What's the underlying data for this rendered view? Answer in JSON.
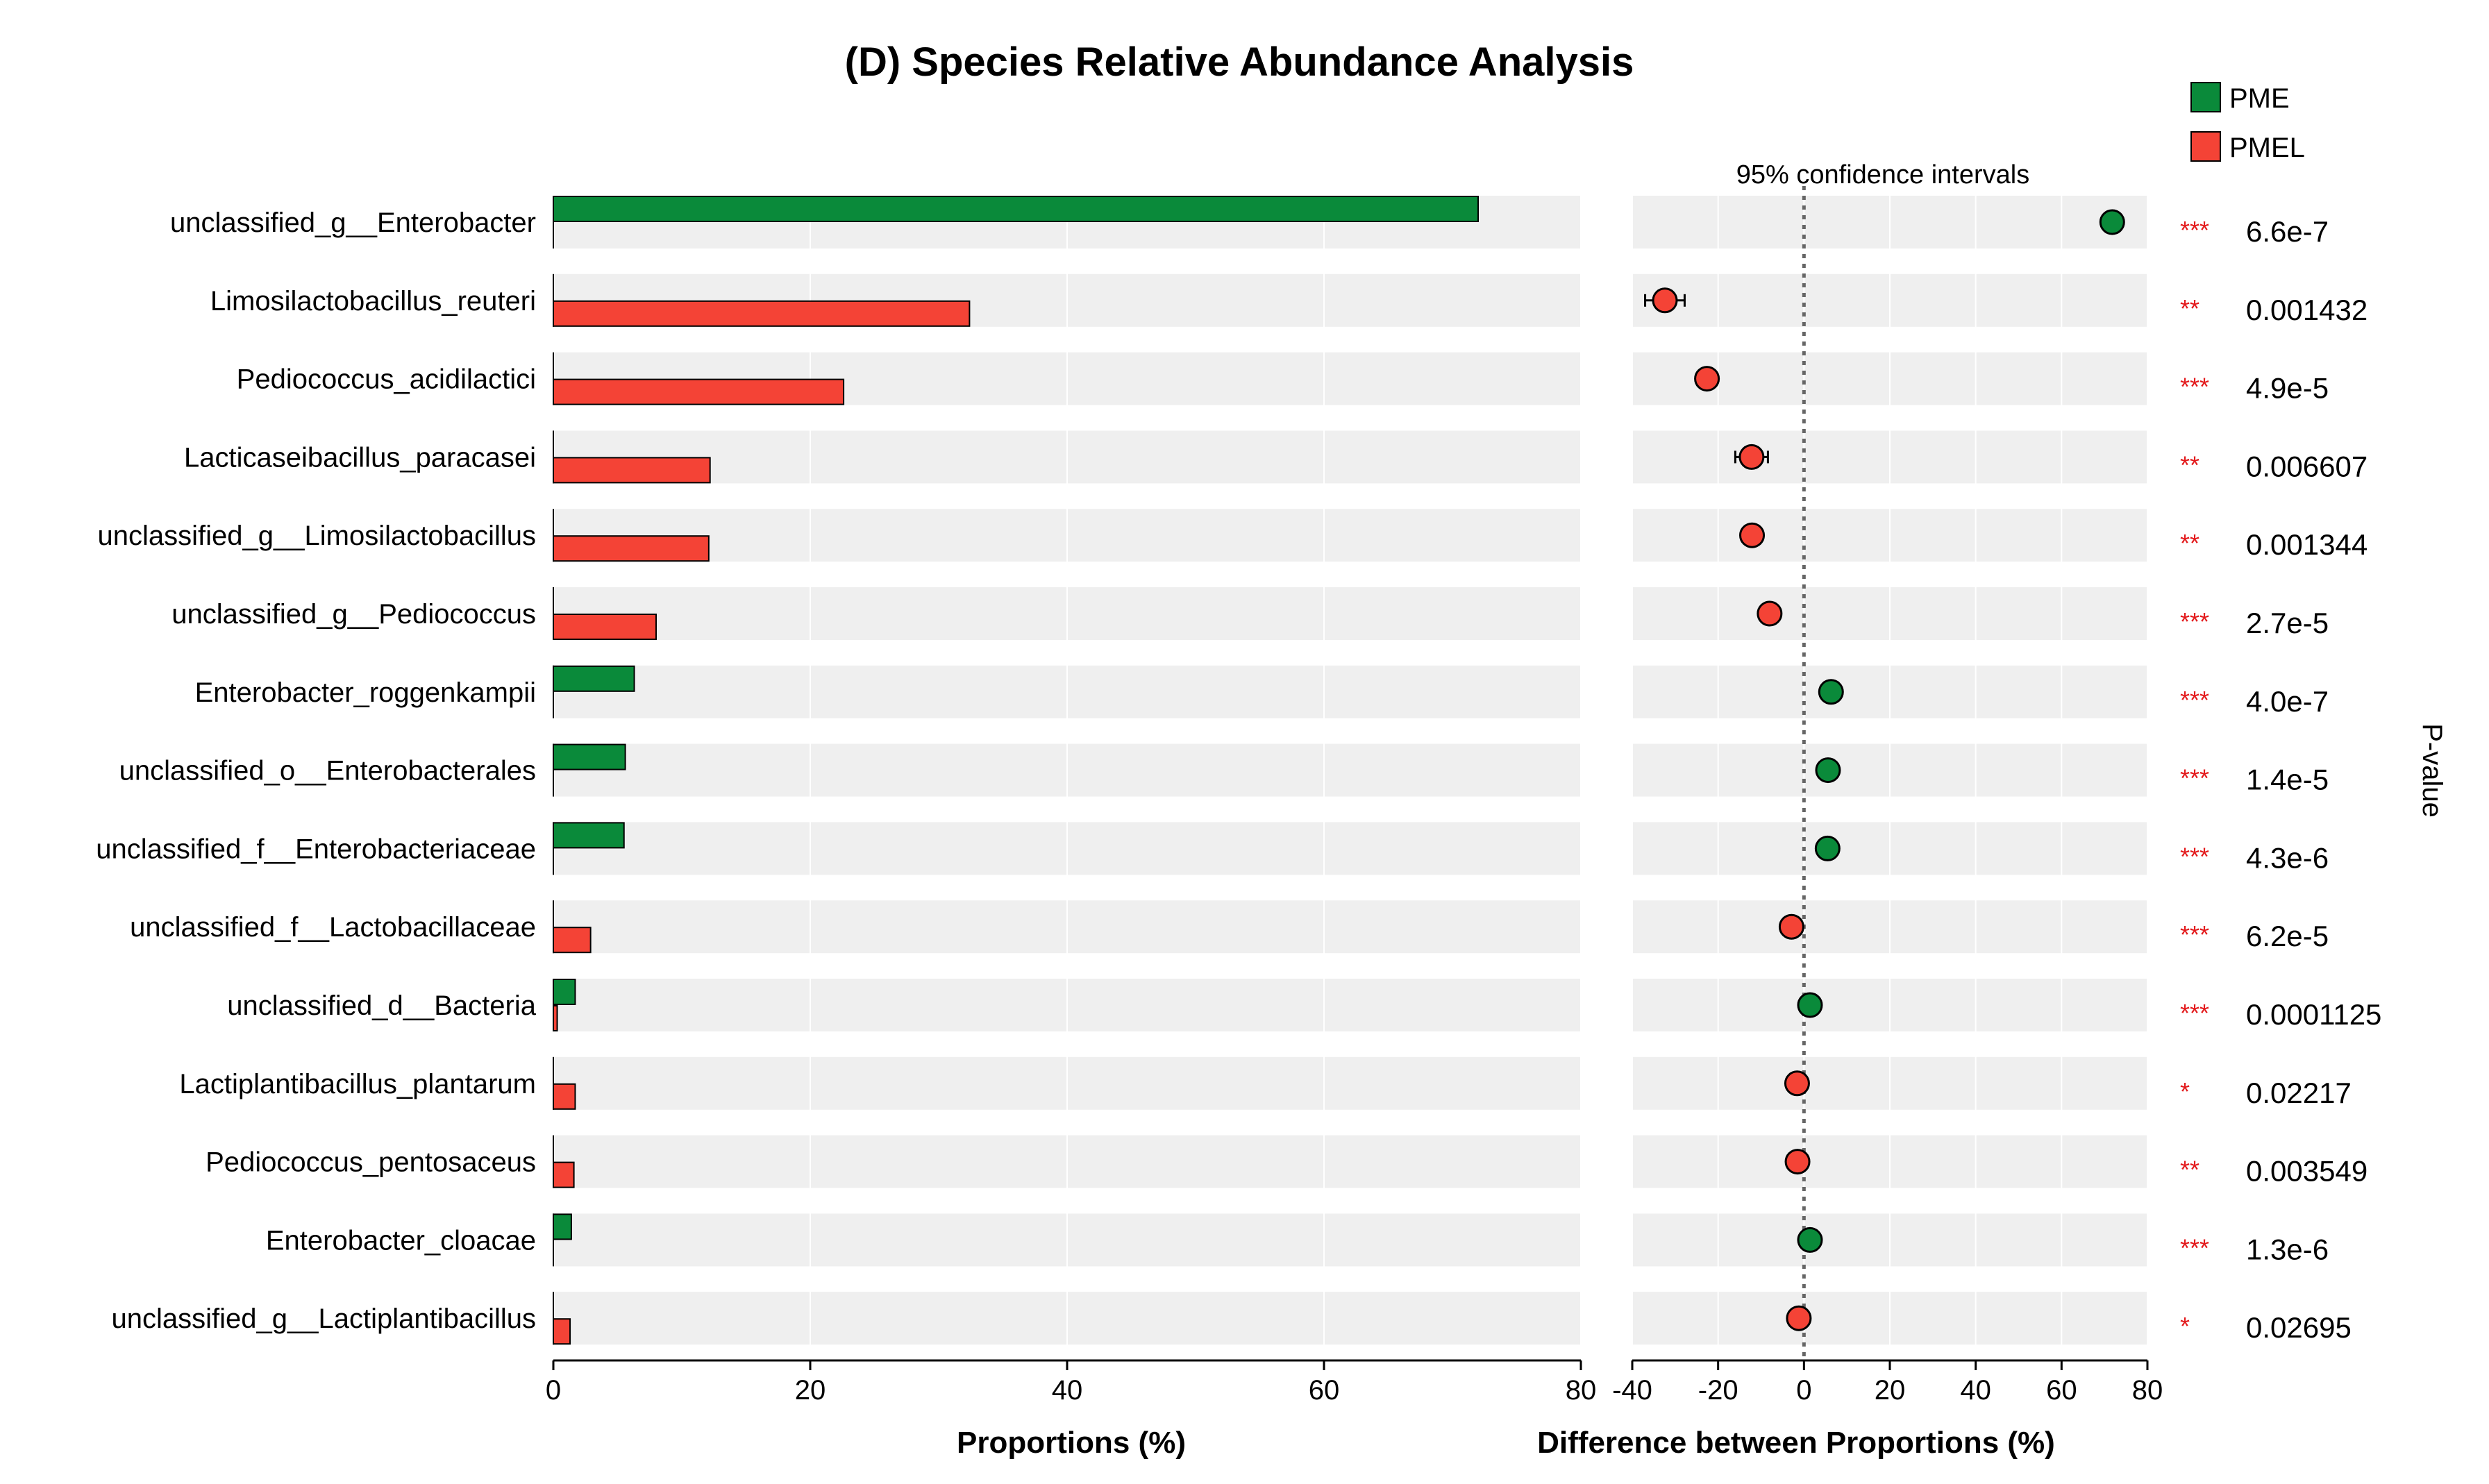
{
  "chart_data": {
    "type": "bar",
    "title": "(D) Species Relative Abundance Analysis",
    "legend": [
      {
        "name": "PME",
        "color": "#0a8a3a"
      },
      {
        "name": "PMEL",
        "color": "#f44336"
      }
    ],
    "left_panel": {
      "xlabel": "Proportions (%)",
      "xlim": [
        0,
        80
      ],
      "ticks": [
        "0",
        "20",
        "40",
        "60",
        "80"
      ]
    },
    "right_panel": {
      "xlabel": "Difference between Proportions (%)",
      "xlim": [
        -40,
        80
      ],
      "ticks": [
        "-40",
        "-20",
        "0",
        "20",
        "40",
        "60",
        "80"
      ],
      "ci_label": "95% confidence intervals"
    },
    "pvalue_label": "P-value",
    "rows": [
      {
        "species": "unclassified_g__Enterobacter",
        "pme": 72.0,
        "pmel": 0.0,
        "diff": 71.8,
        "ci_low": 71.0,
        "ci_high": 72.6,
        "color": "#0a8a3a",
        "stars": "***",
        "pvalue": "6.6e-7"
      },
      {
        "species": "Limosilactobacillus_reuteri",
        "pme": 0.0,
        "pmel": 32.4,
        "diff": -32.4,
        "ci_low": -37.0,
        "ci_high": -27.8,
        "color": "#f44336",
        "stars": "**",
        "pvalue": "0.001432"
      },
      {
        "species": "Pediococcus_acidilactici",
        "pme": 0.0,
        "pmel": 22.6,
        "diff": -22.6,
        "ci_low": -23.8,
        "ci_high": -21.4,
        "color": "#f44336",
        "stars": "***",
        "pvalue": "4.9e-5"
      },
      {
        "species": "Lacticaseibacillus_paracasei",
        "pme": 0.0,
        "pmel": 12.2,
        "diff": -12.2,
        "ci_low": -16.0,
        "ci_high": -8.4,
        "color": "#f44336",
        "stars": "**",
        "pvalue": "0.006607"
      },
      {
        "species": "unclassified_g__Limosilactobacillus",
        "pme": 0.0,
        "pmel": 12.1,
        "diff": -12.1,
        "ci_low": -13.5,
        "ci_high": -10.7,
        "color": "#f44336",
        "stars": "**",
        "pvalue": "0.001344"
      },
      {
        "species": "unclassified_g__Pediococcus",
        "pme": 0.0,
        "pmel": 8.0,
        "diff": -8.0,
        "ci_low": -8.8,
        "ci_high": -7.2,
        "color": "#f44336",
        "stars": "***",
        "pvalue": "2.7e-5"
      },
      {
        "species": "Enterobacter_roggenkampii",
        "pme": 6.3,
        "pmel": 0.0,
        "diff": 6.3,
        "ci_low": 5.9,
        "ci_high": 6.7,
        "color": "#0a8a3a",
        "stars": "***",
        "pvalue": "4.0e-7"
      },
      {
        "species": "unclassified_o__Enterobacterales",
        "pme": 5.6,
        "pmel": 0.0,
        "diff": 5.6,
        "ci_low": 5.1,
        "ci_high": 6.1,
        "color": "#0a8a3a",
        "stars": "***",
        "pvalue": "1.4e-5"
      },
      {
        "species": "unclassified_f__Enterobacteriaceae",
        "pme": 5.5,
        "pmel": 0.0,
        "diff": 5.5,
        "ci_low": 5.0,
        "ci_high": 6.0,
        "color": "#0a8a3a",
        "stars": "***",
        "pvalue": "4.3e-6"
      },
      {
        "species": "unclassified_f__Lactobacillaceae",
        "pme": 0.0,
        "pmel": 2.9,
        "diff": -2.9,
        "ci_low": -3.3,
        "ci_high": -2.5,
        "color": "#f44336",
        "stars": "***",
        "pvalue": "6.2e-5"
      },
      {
        "species": "unclassified_d__Bacteria",
        "pme": 1.7,
        "pmel": 0.3,
        "diff": 1.4,
        "ci_low": 1.0,
        "ci_high": 1.8,
        "color": "#0a8a3a",
        "stars": "***",
        "pvalue": "0.0001125"
      },
      {
        "species": "Lactiplantibacillus_plantarum",
        "pme": 0.0,
        "pmel": 1.7,
        "diff": -1.6,
        "ci_low": -2.4,
        "ci_high": -0.8,
        "color": "#f44336",
        "stars": "*",
        "pvalue": "0.02217"
      },
      {
        "species": "Pediococcus_pentosaceus",
        "pme": 0.0,
        "pmel": 1.6,
        "diff": -1.5,
        "ci_low": -2.1,
        "ci_high": -0.9,
        "color": "#f44336",
        "stars": "**",
        "pvalue": "0.003549"
      },
      {
        "species": "Enterobacter_cloacae",
        "pme": 1.4,
        "pmel": 0.0,
        "diff": 1.4,
        "ci_low": 1.1,
        "ci_high": 1.7,
        "color": "#0a8a3a",
        "stars": "***",
        "pvalue": "1.3e-6"
      },
      {
        "species": "unclassified_g__Lactiplantibacillus",
        "pme": 0.0,
        "pmel": 1.3,
        "diff": -1.2,
        "ci_low": -2.1,
        "ci_high": -0.3,
        "color": "#f44336",
        "stars": "*",
        "pvalue": "0.02695"
      }
    ]
  }
}
